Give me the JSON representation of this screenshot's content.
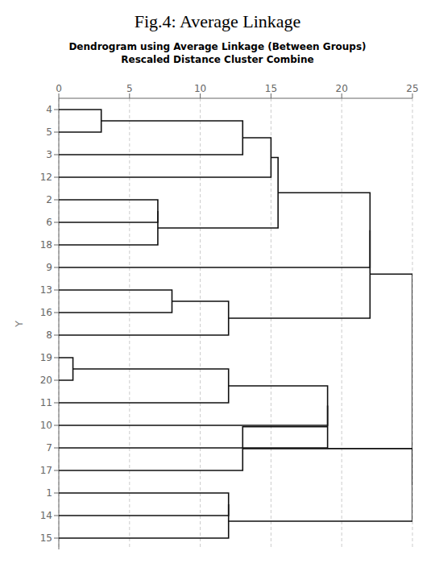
{
  "chart_data": {
    "type": "dendrogram",
    "title": "Fig.4: Average Linkage",
    "subtitle": [
      "Dendrogram using Average Linkage (Between Groups)",
      "Rescaled Distance Cluster Combine"
    ],
    "ylabel": "Y",
    "categories": [
      "4",
      "5",
      "3",
      "12",
      "2",
      "6",
      "18",
      "9",
      "13",
      "16",
      "8",
      "19",
      "20",
      "11",
      "10",
      "7",
      "17",
      "1",
      "14",
      "15"
    ],
    "merges": [
      {
        "a": "4",
        "b": "5",
        "distance": 3
      },
      {
        "a": "3",
        "b": 0,
        "distance": 13
      },
      {
        "a": "12",
        "b": 1,
        "distance": 15
      },
      {
        "a": "2",
        "b": "6",
        "distance": 7
      },
      {
        "a": "18",
        "b": 3,
        "distance": 7
      },
      {
        "a": 2,
        "b": 4,
        "distance": 15.5
      },
      {
        "a": "9",
        "b": 5,
        "distance": 22
      },
      {
        "a": "13",
        "b": "16",
        "distance": 8
      },
      {
        "a": "8",
        "b": 7,
        "distance": 12
      },
      {
        "a": 6,
        "b": 8,
        "distance": 22
      },
      {
        "a": "19",
        "b": "20",
        "distance": 1
      },
      {
        "a": "11",
        "b": 10,
        "distance": 12
      },
      {
        "a": "10",
        "b": 11,
        "distance": 19
      },
      {
        "a": "7",
        "b": 12,
        "distance": 19
      },
      {
        "a": "17",
        "b": 13,
        "distance": 13
      },
      {
        "a": "1",
        "b": "14",
        "distance": 12
      },
      {
        "a": "15",
        "b": 15,
        "distance": 12
      },
      {
        "a": 14,
        "b": 16,
        "distance": 25
      },
      {
        "a": 9,
        "b": 17,
        "distance": 25
      }
    ],
    "xlim": [
      0,
      25
    ],
    "xticks": [
      0,
      5,
      10,
      15,
      20,
      25
    ],
    "grid": true,
    "color": "#111111"
  }
}
